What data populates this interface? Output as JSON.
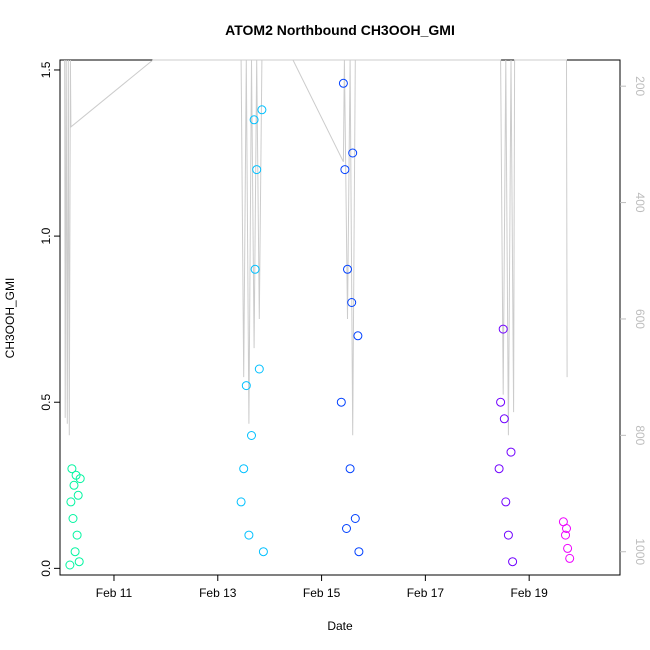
{
  "chart_data": {
    "type": "scatter",
    "title": "ATOM2 Northbound CH3OOH_GMI",
    "xlabel": "Date",
    "ylabel": "CH3OOH_GMI",
    "xlim": [
      9.96,
      20.75
    ],
    "ylim": [
      -0.02,
      1.53
    ],
    "x_ticks": [
      11,
      13,
      15,
      17,
      19
    ],
    "x_tick_labels": [
      "Feb 11",
      "Feb 13",
      "Feb 15",
      "Feb 17",
      "Feb 19"
    ],
    "y_ticks": [
      0.0,
      0.5,
      1.0,
      1.5
    ],
    "y_tick_labels": [
      "0.0",
      "0.5",
      "1.0",
      "1.5"
    ],
    "right_axis": {
      "lim": [
        1040,
        155
      ],
      "ticks": [
        200,
        400,
        600,
        800,
        1000
      ],
      "tick_labels": [
        "200",
        "400",
        "600",
        "800",
        "1000"
      ],
      "color": "#bdbdbd"
    },
    "grid": false,
    "legend": "none",
    "series": [
      {
        "color": "#00f5a0",
        "x_range": [
          10.15,
          10.35
        ],
        "y_range": [
          0.0,
          0.3
        ],
        "approx_points": [
          [
            10.15,
            0.01
          ],
          [
            10.17,
            0.2
          ],
          [
            10.19,
            0.3
          ],
          [
            10.21,
            0.15
          ],
          [
            10.23,
            0.25
          ],
          [
            10.25,
            0.05
          ],
          [
            10.27,
            0.28
          ],
          [
            10.29,
            0.1
          ],
          [
            10.31,
            0.22
          ],
          [
            10.33,
            0.02
          ],
          [
            10.35,
            0.27
          ]
        ]
      },
      {
        "color": "#00c0ff",
        "x_range": [
          13.4,
          13.9
        ],
        "y_range": [
          0.0,
          1.4
        ],
        "approx_points": [
          [
            13.45,
            0.2
          ],
          [
            13.5,
            0.3
          ],
          [
            13.55,
            0.55
          ],
          [
            13.6,
            0.1
          ],
          [
            13.65,
            0.4
          ],
          [
            13.7,
            1.35
          ],
          [
            13.72,
            0.9
          ],
          [
            13.75,
            1.2
          ],
          [
            13.8,
            0.6
          ],
          [
            13.85,
            1.38
          ],
          [
            13.88,
            0.05
          ]
        ]
      },
      {
        "color": "#0040ff",
        "x_range": [
          15.35,
          15.75
        ],
        "y_range": [
          0.0,
          1.47
        ],
        "approx_points": [
          [
            15.38,
            0.5
          ],
          [
            15.42,
            1.46
          ],
          [
            15.45,
            1.2
          ],
          [
            15.5,
            0.9
          ],
          [
            15.55,
            0.3
          ],
          [
            15.6,
            1.25
          ],
          [
            15.65,
            0.15
          ],
          [
            15.7,
            0.7
          ],
          [
            15.72,
            0.05
          ],
          [
            15.48,
            0.12
          ],
          [
            15.58,
            0.8
          ]
        ]
      },
      {
        "color": "#7000ff",
        "x_range": [
          18.4,
          18.7
        ],
        "y_range": [
          0.0,
          0.74
        ],
        "approx_points": [
          [
            18.42,
            0.3
          ],
          [
            18.45,
            0.5
          ],
          [
            18.5,
            0.72
          ],
          [
            18.55,
            0.2
          ],
          [
            18.6,
            0.1
          ],
          [
            18.65,
            0.35
          ],
          [
            18.68,
            0.02
          ],
          [
            18.52,
            0.45
          ]
        ]
      },
      {
        "color": "#ee00ff",
        "x_range": [
          19.65,
          19.8
        ],
        "y_range": [
          0.02,
          0.15
        ],
        "approx_points": [
          [
            19.66,
            0.14
          ],
          [
            19.7,
            0.1
          ],
          [
            19.74,
            0.06
          ],
          [
            19.78,
            0.03
          ],
          [
            19.72,
            0.12
          ]
        ]
      }
    ],
    "pressure_line": {
      "color": "#cccccc",
      "points": [
        [
          10.05,
          155
        ],
        [
          10.06,
          770
        ],
        [
          10.08,
          155
        ],
        [
          10.1,
          780
        ],
        [
          10.12,
          155
        ],
        [
          10.14,
          800
        ],
        [
          10.16,
          155
        ],
        [
          10.17,
          270
        ],
        [
          11.75,
          155
        ],
        [
          14.45,
          155
        ],
        [
          15.42,
          330
        ],
        [
          15.44,
          155
        ],
        [
          15.5,
          600
        ],
        [
          15.55,
          155
        ],
        [
          15.6,
          800
        ],
        [
          15.65,
          155
        ],
        [
          13.45,
          155
        ],
        [
          13.5,
          700
        ],
        [
          13.55,
          155
        ],
        [
          13.6,
          780
        ],
        [
          13.65,
          155
        ],
        [
          13.7,
          650
        ],
        [
          13.75,
          155
        ],
        [
          13.8,
          600
        ],
        [
          13.85,
          155
        ],
        [
          18.45,
          155
        ],
        [
          18.5,
          730
        ],
        [
          18.55,
          155
        ],
        [
          18.6,
          800
        ],
        [
          18.65,
          155
        ],
        [
          18.7,
          760
        ],
        [
          18.72,
          155
        ],
        [
          19.72,
          155
        ],
        [
          19.73,
          700
        ]
      ]
    }
  }
}
